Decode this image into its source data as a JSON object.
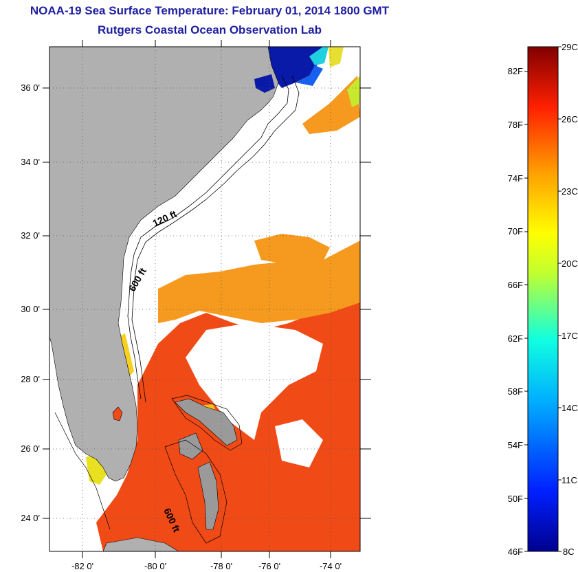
{
  "title": "NOAA-19 Sea Surface Temperature:  February 01, 2014 1800 GMT",
  "subtitle": "Rutgers Coastal Ocean Observation Lab",
  "map": {
    "lat_labels": [
      "36 0'",
      "34 0'",
      "32 0'",
      "30 0'",
      "28 0'",
      "26 0'",
      "24 0'"
    ],
    "lon_labels": [
      "-82 0'",
      "-80 0'",
      "-78 0'",
      "-76 0'",
      "-74 0'"
    ],
    "contour_labels": [
      "120 ft",
      "600 ft",
      "600 ft"
    ],
    "colors": {
      "land": "#b0b0b0",
      "cloud": "#ffffff",
      "warm": "#f04a16",
      "mid": "#f59a1e",
      "cold": "#0a1aa8"
    }
  },
  "colorbar": {
    "c_labels": [
      "29C",
      "26C",
      "23C",
      "20C",
      "17C",
      "14C",
      "11C",
      "8C"
    ],
    "f_labels": [
      "82F",
      "78F",
      "74F",
      "70F",
      "66F",
      "62F",
      "58F",
      "54F",
      "50F",
      "46F"
    ],
    "c_range": [
      8,
      29
    ]
  }
}
